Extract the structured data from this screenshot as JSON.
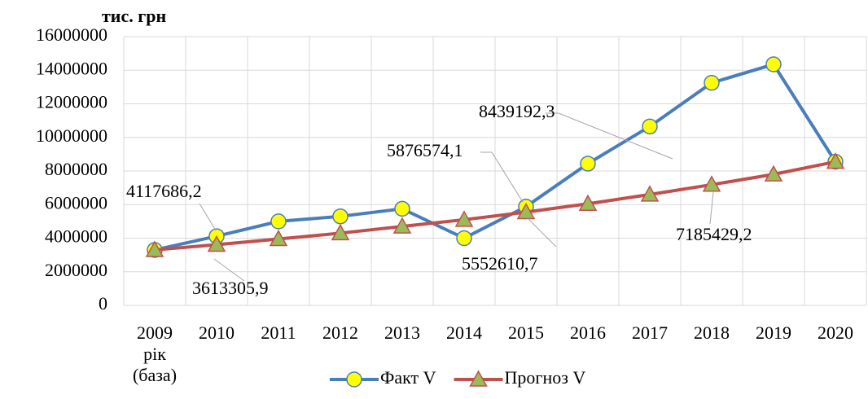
{
  "chart_data": {
    "type": "line",
    "y_axis_label": "тис. грн",
    "categories": [
      "2009 рік (база)",
      "2010",
      "2011",
      "2012",
      "2013",
      "2014",
      "2015",
      "2016",
      "2017",
      "2018",
      "2019",
      "2020"
    ],
    "series": [
      {
        "name": "Факт V",
        "color": "#4a7ebb",
        "marker_color": "#ffff00",
        "marker": "circle",
        "values": [
          3300000,
          4117686.2,
          5000000,
          5300000,
          5750000,
          4000000,
          5876574.1,
          8439192.3,
          10650000,
          13250000,
          14350000,
          8550000
        ],
        "value_labels": [
          null,
          "4117686,2",
          null,
          null,
          null,
          null,
          "5876574,1",
          "8439192,3",
          null,
          null,
          null,
          null
        ]
      },
      {
        "name": "Прогноз V",
        "color": "#c0504d",
        "marker_color": "#9bbb59",
        "marker": "triangle",
        "values": [
          3300000,
          3613305.9,
          3950000,
          4300000,
          4700000,
          5100000,
          5552610.7,
          6050000,
          6600000,
          7185429.2,
          7800000,
          8550000
        ],
        "value_labels": [
          null,
          "3613305,9",
          null,
          null,
          null,
          null,
          "5552610,7",
          null,
          null,
          "7185429,2",
          null,
          null
        ]
      }
    ],
    "ylim": [
      0,
      16000000
    ],
    "yticks": [
      0,
      2000000,
      4000000,
      6000000,
      8000000,
      10000000,
      12000000,
      14000000,
      16000000
    ],
    "grid": true,
    "legend": "bottom"
  }
}
